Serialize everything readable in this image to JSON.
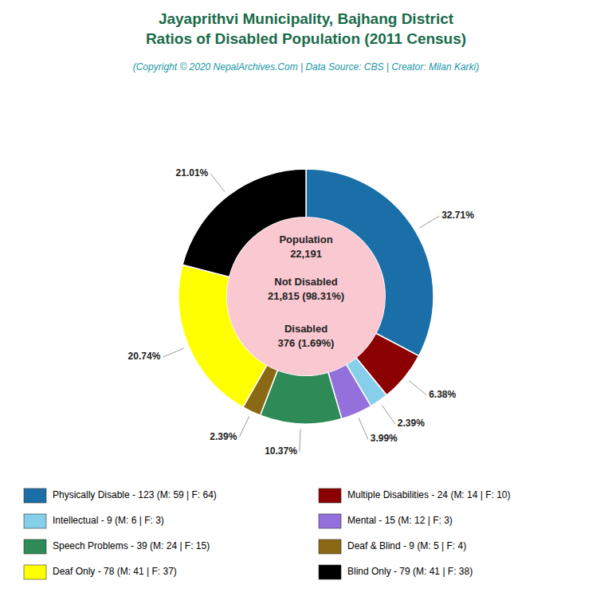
{
  "chart_data": {
    "type": "pie",
    "title": "Jayaprithvi Municipality, Bajhang District\nRatios of Disabled Population (2011 Census)",
    "subtitle": "(Copyright © 2020 NepalArchives.Com | Data Source: CBS | Creator: Milan Karki)",
    "categories": [
      "Physically Disable - 123 (M: 59 | F: 64)",
      "Multiple Disabilities - 24 (M: 14 | F: 10)",
      "Intellectual - 9 (M: 6 | F: 3)",
      "Mental - 15 (M: 12 | F: 3)",
      "Speech Problems - 39 (M: 24 | F: 15)",
      "Deaf & Blind - 9 (M: 5 | F: 4)",
      "Deaf Only - 78 (M: 41 | F: 37)",
      "Blind Only - 79 (M: 41 | F: 38)"
    ],
    "values": [
      32.71,
      6.38,
      2.39,
      3.99,
      10.37,
      2.39,
      20.74,
      21.01
    ],
    "value_labels": [
      "32.71%",
      "6.38%",
      "2.39%",
      "3.99%",
      "10.37%",
      "2.39%",
      "20.74%",
      "21.01%"
    ],
    "colors": [
      "#1a6fa8",
      "#8b0000",
      "#87ceeb",
      "#9370db",
      "#2e8b57",
      "#8b6914",
      "#ffff00",
      "#000000"
    ],
    "annotations": [
      "Population\n22,191",
      "Not Disabled\n21,815 (98.31%)",
      "Disabled\n376 (1.69%)"
    ],
    "data_labels": true,
    "legend": "bottom"
  }
}
